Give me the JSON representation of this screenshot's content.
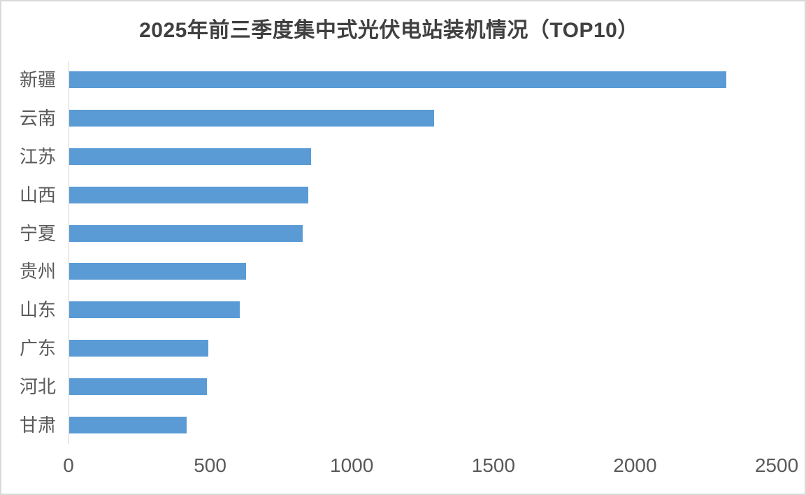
{
  "chart_data": {
    "type": "bar",
    "orientation": "horizontal",
    "title": "2025年前三季度集中式光伏电站装机情况（TOP10）",
    "categories": [
      "新疆",
      "云南",
      "江苏",
      "山西",
      "宁夏",
      "贵州",
      "山东",
      "广东",
      "河北",
      "甘肃"
    ],
    "values": [
      2320,
      1288,
      854,
      843,
      824,
      624,
      602,
      491,
      485,
      415
    ],
    "xlabel": "",
    "ylabel": "",
    "xlim": [
      0,
      2500
    ],
    "x_ticks": [
      "0",
      "500",
      "1000",
      "1500",
      "2000",
      "2500"
    ],
    "x_tick_values": [
      0,
      500,
      1000,
      1500,
      2000,
      2500
    ],
    "grid": false,
    "legend": false,
    "bar_color": "#5b9bd5",
    "axis_line_color": "#d6d6d6",
    "tick_label_color": "#595959",
    "category_label_color": "#595959",
    "title_color": "#404040"
  }
}
